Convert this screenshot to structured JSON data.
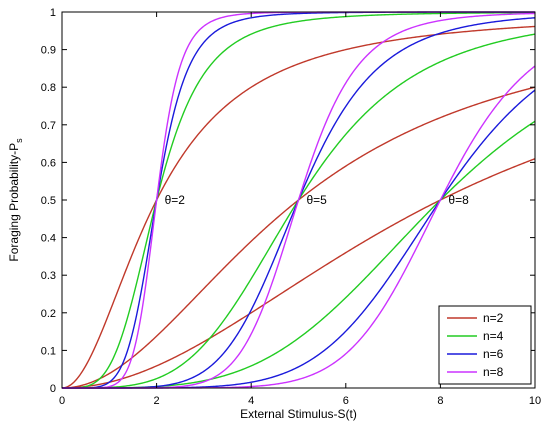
{
  "chart_data": {
    "type": "line",
    "xlabel": "External Stimulus-S(t)",
    "ylabel_main": "Foraging Probability-P",
    "ylabel_sub": "s",
    "xlim": [
      0,
      10
    ],
    "ylim": [
      0,
      1
    ],
    "xticks": [
      0,
      2,
      4,
      6,
      8,
      10
    ],
    "yticks": [
      0,
      0.1,
      0.2,
      0.3,
      0.4,
      0.5,
      0.6,
      0.7,
      0.8,
      0.9,
      1
    ],
    "grid": false,
    "legend_position": "bottom-right",
    "function": "S^n / (S^n + theta^n)",
    "thetas": [
      2,
      5,
      8
    ],
    "annotations": [
      {
        "text": "θ=2",
        "x": 2,
        "y": 0.5
      },
      {
        "text": "θ=5",
        "x": 5,
        "y": 0.5
      },
      {
        "text": "θ=8",
        "x": 8,
        "y": 0.5
      }
    ],
    "series": [
      {
        "name": "n=2",
        "n": 2,
        "color": "#c0392b"
      },
      {
        "name": "n=4",
        "n": 4,
        "color": "#22cc22"
      },
      {
        "name": "n=6",
        "n": 6,
        "color": "#1a1adb"
      },
      {
        "name": "n=8",
        "n": 8,
        "color": "#cc33ff"
      }
    ]
  }
}
